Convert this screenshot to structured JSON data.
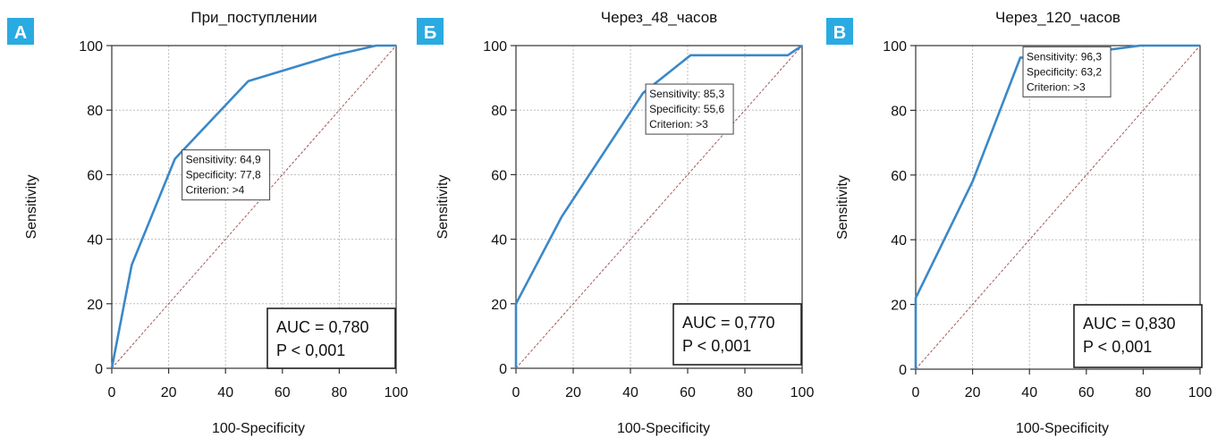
{
  "colors": {
    "roc": "#3b88c8",
    "diagonal": "#a05a5a",
    "badge": "#29abe2"
  },
  "chart_data": [
    {
      "type": "line",
      "panel": "А",
      "title": "При_поступлении",
      "xlabel": "100-Specificity",
      "ylabel": "Sensitivity",
      "xlim": [
        0,
        100
      ],
      "ylim": [
        0,
        100
      ],
      "xticks": [
        0,
        20,
        40,
        60,
        80,
        100
      ],
      "yticks": [
        0,
        20,
        40,
        60,
        80,
        100
      ],
      "grid": true,
      "series": [
        {
          "x": [
            0,
            7,
            22.2,
            48,
            78,
            93,
            100
          ],
          "y": [
            0,
            32,
            64.9,
            89,
            97,
            100,
            100
          ]
        }
      ],
      "reference_line": {
        "x": [
          0,
          100
        ],
        "y": [
          0,
          100
        ]
      },
      "annotation": {
        "at": [
          22.2,
          64.9
        ],
        "lines": [
          "Sensitivity: 64,9",
          "Specificity: 77,8",
          "Criterion: >4"
        ]
      },
      "stats": [
        "AUC = 0,780",
        "P < 0,001"
      ]
    },
    {
      "type": "line",
      "panel": "Б",
      "title": "Через_48_часов",
      "xlabel": "100-Specificity",
      "ylabel": "Sensitivity",
      "xlim": [
        0,
        100
      ],
      "ylim": [
        0,
        100
      ],
      "xticks": [
        0,
        20,
        40,
        60,
        80,
        100
      ],
      "yticks": [
        0,
        20,
        40,
        60,
        80,
        100
      ],
      "grid": true,
      "series": [
        {
          "x": [
            0,
            0,
            16,
            44.4,
            61,
            95,
            100
          ],
          "y": [
            0,
            20,
            47,
            85.3,
            97,
            97,
            100
          ]
        }
      ],
      "reference_line": {
        "x": [
          0,
          100
        ],
        "y": [
          0,
          100
        ]
      },
      "annotation": {
        "at": [
          44.4,
          85.3
        ],
        "lines": [
          "Sensitivity: 85,3",
          "Specificity: 55,6",
          "Criterion: >3"
        ]
      },
      "stats": [
        "AUC = 0,770",
        "P < 0,001"
      ]
    },
    {
      "type": "line",
      "panel": "В",
      "title": "Через_120_часов",
      "xlabel": "100-Specificity",
      "ylabel": "Sensitivity",
      "xlim": [
        0,
        100
      ],
      "ylim": [
        0,
        100
      ],
      "xticks": [
        0,
        20,
        40,
        60,
        80,
        100
      ],
      "yticks": [
        0,
        20,
        40,
        60,
        80,
        100
      ],
      "grid": true,
      "series": [
        {
          "x": [
            0,
            0,
            20,
            36.8,
            47,
            79,
            100
          ],
          "y": [
            0,
            22,
            58,
            96.3,
            96.3,
            100,
            100
          ]
        }
      ],
      "reference_line": {
        "x": [
          0,
          100
        ],
        "y": [
          0,
          100
        ]
      },
      "annotation": {
        "at": [
          36.8,
          96.3
        ],
        "lines": [
          "Sensitivity: 96,3",
          "Specificity: 63,2",
          "Criterion: >3"
        ]
      },
      "stats": [
        "AUC = 0,830",
        "P < 0,001"
      ]
    }
  ]
}
